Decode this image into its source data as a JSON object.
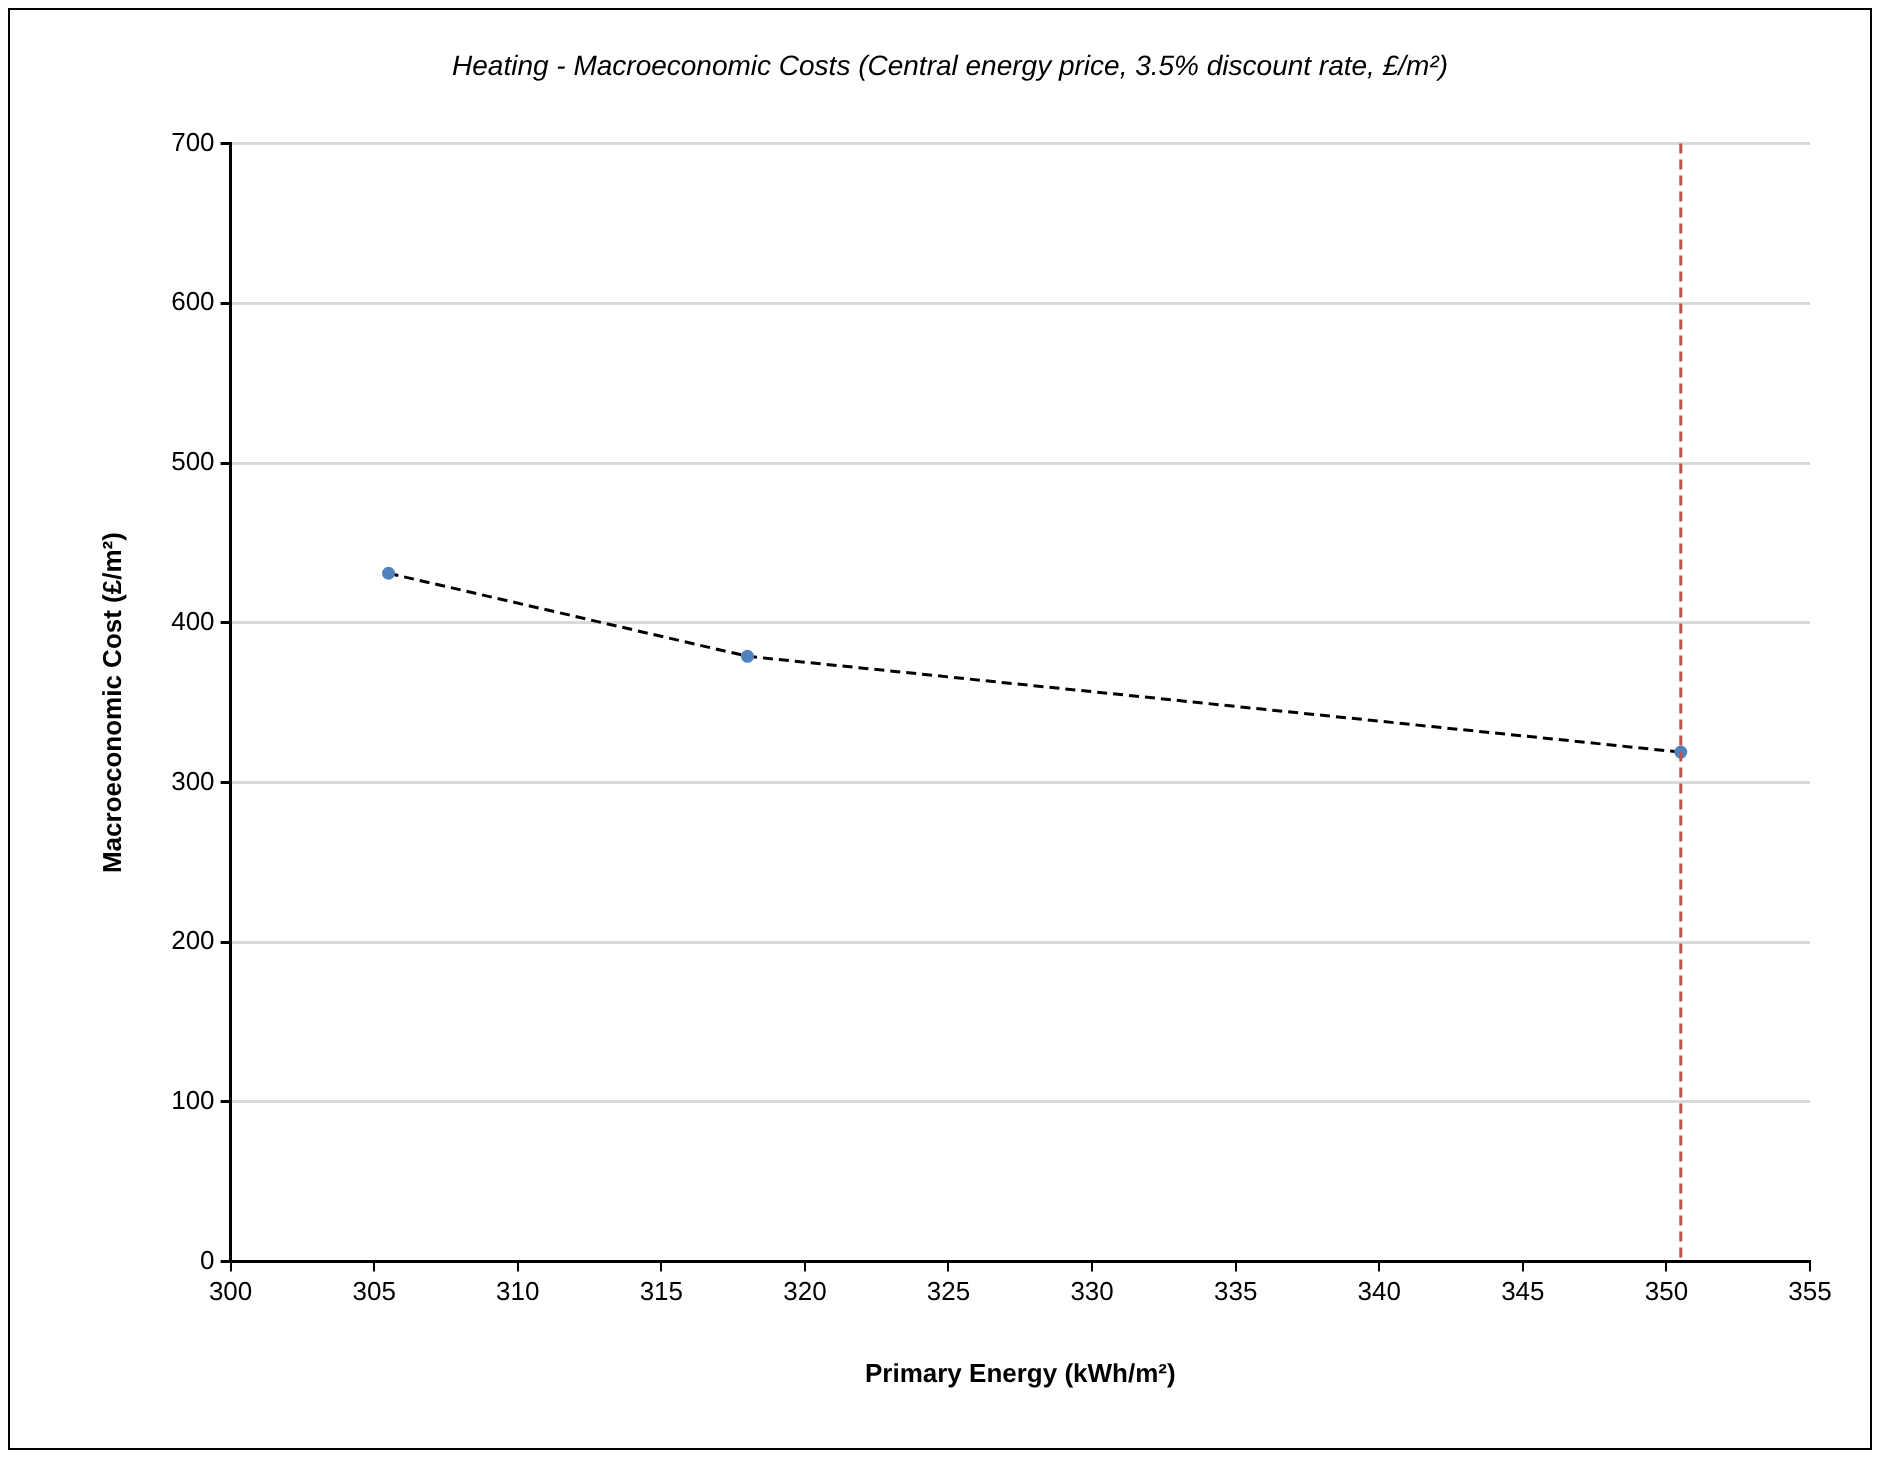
{
  "chart_data": {
    "type": "line",
    "title": "Heating - Macroeconomic Costs (Central energy price, 3.5% discount rate, £/m²)",
    "xlabel": "Primary Energy (kWh/m²)",
    "ylabel": "Macroeconomic Cost (£/m²)",
    "series": [
      {
        "color": "#4f81bd",
        "x": [
          305.5,
          318,
          350.5
        ],
        "values": [
          431,
          379,
          319
        ]
      }
    ],
    "xlim": [
      300,
      355
    ],
    "xticks": [
      300,
      305,
      310,
      315,
      320,
      325,
      330,
      335,
      340,
      345,
      350,
      355
    ],
    "ylim": [
      0,
      700
    ],
    "yticks": [
      0,
      100,
      200,
      300,
      400,
      500,
      600,
      700
    ],
    "grid": "y",
    "legend": false,
    "marker": "circle",
    "line_style": "dashed",
    "ref_lines": [
      {
        "axis": "x",
        "value": 350.5,
        "color": "#c0504d",
        "line_style": "dashed"
      }
    ]
  }
}
